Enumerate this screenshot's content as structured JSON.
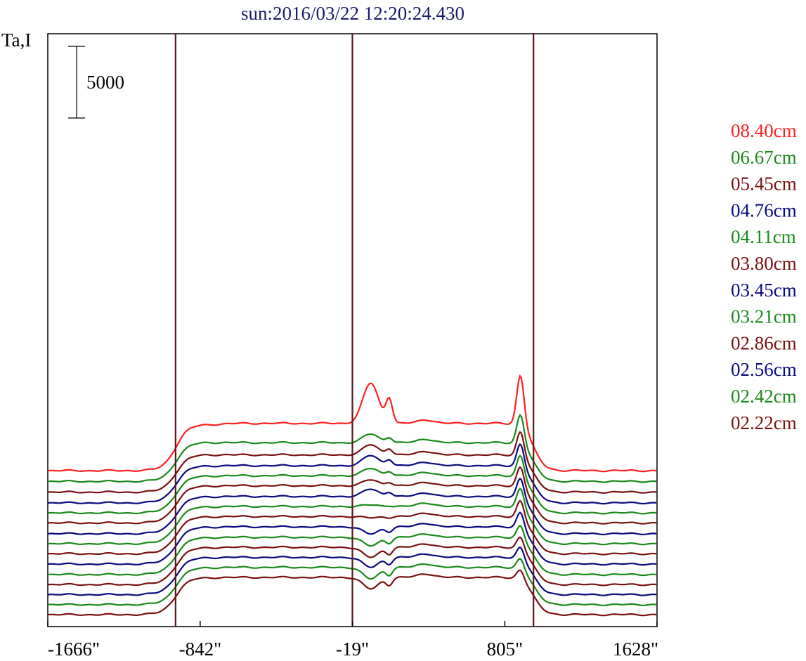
{
  "chart_data": {
    "type": "line",
    "title": "sun:2016/03/22 12:20:24.430",
    "ylabel": "Ta,I",
    "scale_bar_label": "5000",
    "x_tick_labels": [
      "-1666\"",
      "-842\"",
      "-19\"",
      "805\"",
      "1628\""
    ],
    "x_ticks": [
      -1666,
      -842,
      -19,
      805,
      1628
    ],
    "xlim": [
      -1666,
      1628
    ],
    "vertical_markers": [
      -975,
      -19,
      960
    ],
    "colors": {
      "red": "#ff2020",
      "green": "#1a8a1a",
      "darkred": "#7a1010",
      "blue": "#0a0a80",
      "marker": "#5a1818"
    },
    "series": [
      {
        "name": "08.40cm",
        "color": "#ff2020",
        "baseline": 6700,
        "peak": 6700,
        "limb": 2200,
        "disk": 3300,
        "center_peak": 6100,
        "right_peak": 5600
      },
      {
        "name": "06.67cm",
        "color": "#1a8a1a",
        "baseline": 5950,
        "peak": 5950,
        "limb": 2100,
        "disk": 2700,
        "center_peak": 3300,
        "right_peak": 3800
      },
      {
        "name": "05.45cm",
        "color": "#7a1010",
        "baseline": 5200,
        "peak": 5200,
        "limb": 2000,
        "disk": 2600,
        "center_peak": 3300,
        "right_peak": 3400
      },
      {
        "name": "04.76cm",
        "color": "#0a0a80",
        "baseline": 4450,
        "peak": 4450,
        "limb": 1900,
        "disk": 2600,
        "center_peak": 3300,
        "right_peak": 3300
      },
      {
        "name": "04.11cm",
        "color": "#1a8a1a",
        "baseline": 3750,
        "peak": 3750,
        "limb": 1900,
        "disk": 2600,
        "center_peak": 3100,
        "right_peak": 3200
      },
      {
        "name": "03.80cm",
        "color": "#7a1010",
        "baseline": 3050,
        "peak": 3050,
        "limb": 1900,
        "disk": 2600,
        "center_peak": 3000,
        "right_peak": 3100
      },
      {
        "name": "03.45cm",
        "color": "#0a0a80",
        "baseline": 2300,
        "peak": 2300,
        "limb": 1900,
        "disk": 2600,
        "center_peak": 3100,
        "right_peak": 3050
      },
      {
        "name": "03.21cm",
        "color": "#1a8a1a",
        "baseline": 1600,
        "peak": 1600,
        "limb": 1900,
        "disk": 2600,
        "center_peak": 2700,
        "right_peak": 3050
      },
      {
        "name": "02.86cm",
        "color": "#7a1010",
        "baseline": 900,
        "peak": 900,
        "limb": 1900,
        "disk": 2600,
        "center_peak": 2500,
        "right_peak": 2900
      },
      {
        "name": "02.56cm",
        "color": "#0a0a80",
        "baseline": 180,
        "peak": 180,
        "limb": 1900,
        "disk": 2600,
        "center_peak": 2100,
        "right_peak": 2800
      },
      {
        "name": "02.42cm",
        "color": "#1a8a1a",
        "baseline": -550,
        "peak": -550,
        "limb": 1900,
        "disk": 2600,
        "center_peak": 2000,
        "right_peak": 2600
      },
      {
        "name": "02.22cm",
        "color": "#7a1010",
        "baseline": -1250,
        "peak": -1250,
        "limb": 1900,
        "disk": 2600,
        "center_peak": 1900,
        "right_peak": 2500
      },
      {
        "color": "#0a0a80",
        "baseline": -1950,
        "limb": 1900,
        "disk": 2600,
        "center_peak": 1900,
        "right_peak": 2500
      },
      {
        "color": "#1a8a1a",
        "baseline": -2650,
        "limb": 1900,
        "disk": 2600,
        "center_peak": 1800,
        "right_peak": 2400
      },
      {
        "color": "#7a1010",
        "baseline": -3350,
        "limb": 1900,
        "disk": 2600,
        "center_peak": 1800,
        "right_peak": 2300
      }
    ]
  }
}
